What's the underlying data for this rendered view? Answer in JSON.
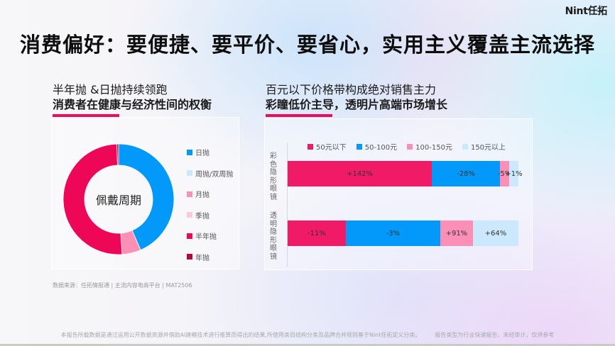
{
  "header": {
    "logo": "Nint任拓",
    "title": "消费偏好：要便捷、要平价、要省心，实用主义覆盖主流选择"
  },
  "left_section": {
    "headline": "半年抛 &日抛持续领跑",
    "subheadline": "消费者在健康与经济性间的权衡",
    "accent_color": "#ee0b58"
  },
  "right_section": {
    "headline": "百元以下价格带构成绝对销售主力",
    "subheadline": "彩瞳低价主导，透明片高端市场增长",
    "accent_color": "#ee0b58"
  },
  "source": "数据来源：任拓情报通 | 主流内容电商平台 | MAT2506",
  "footer": {
    "disclaimer": "本报告所载数据是通过运用公开数据资源并借助AI建模技术进行推算而得出的结果,所使用类目结构分类及品牌合并规则基于Nint任拓定义分类。",
    "note": "报告类型为行业快速报告，未经审计，仅供参考"
  },
  "chart_data": [
    {
      "type": "pie",
      "subtype": "donut",
      "title": "",
      "center_label": "佩戴周期",
      "legend_position": "right",
      "categories": [
        "日抛",
        "周抛/双周抛",
        "月抛",
        "季抛",
        "半年抛",
        "年抛"
      ],
      "values": [
        43.5,
        0,
        5.5,
        0,
        50.5,
        0.5
      ],
      "colors": [
        "#0399fa",
        "#cbe8fc",
        "#fc8fb5",
        "#fcc9da",
        "#ee0756",
        "#b4063d"
      ],
      "unit": "% (estimated share, no data labels shown)"
    },
    {
      "type": "bar",
      "orientation": "horizontal",
      "stacked": true,
      "normalized": true,
      "title": "",
      "legend_position": "top",
      "categories": [
        "彩色隐形眼镜",
        "透明隐形眼镜"
      ],
      "series": [
        {
          "name": "50元以下",
          "color": "#f01a66",
          "share": [
            62.5,
            25.2
          ],
          "labels": [
            "+142%",
            "-11%"
          ]
        },
        {
          "name": "50-100元",
          "color": "#0399fa",
          "share": [
            29.5,
            40.9
          ],
          "labels": [
            "-28%",
            "-3%"
          ]
        },
        {
          "name": "100-150元",
          "color": "#fc8fb5",
          "share": [
            4.0,
            14.2
          ],
          "labels": [
            "-5%",
            "+91%"
          ]
        },
        {
          "name": "150元以上",
          "color": "#cbe8fc",
          "share": [
            4.0,
            19.7
          ],
          "labels": [
            "+1%",
            "+64%"
          ]
        }
      ],
      "xlabel": "",
      "ylabel": "",
      "grid": false
    }
  ]
}
